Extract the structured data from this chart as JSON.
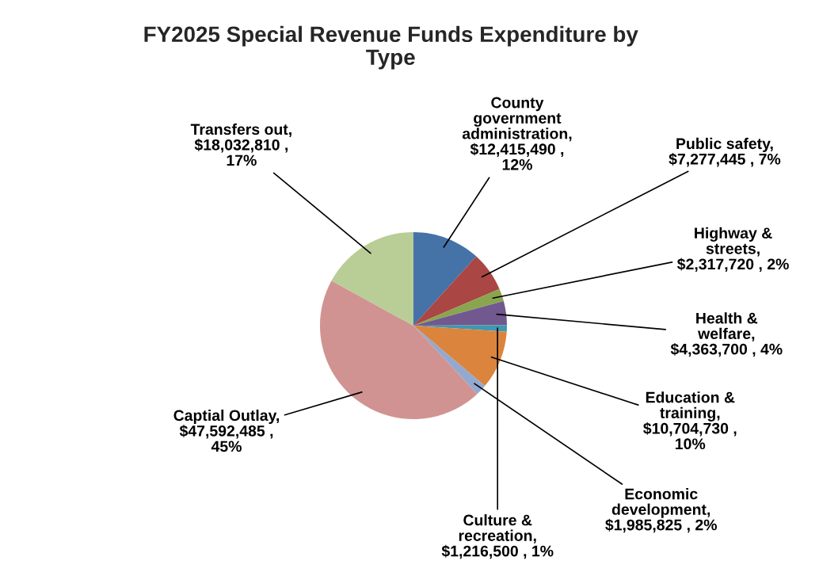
{
  "chart_data": {
    "type": "pie",
    "title": "FY2025 Special Revenue Funds Expenditure by\nType",
    "categories": [
      "County\ngovernment\nadministration",
      "Public safety",
      "Highway &\nstreets",
      "Health &\nwelfare",
      "Culture &\nrecreation",
      "Education &\ntraining",
      "Economic\ndevelopment",
      "Captial Outlay",
      "Transfers out"
    ],
    "values": [
      12415490,
      7277445,
      2317720,
      4363700,
      1216500,
      10704730,
      1985825,
      47592485,
      18032810
    ],
    "value_labels": [
      ",\n$12,415,490 ,\n12%",
      ",\n$7,277,445 , 7%",
      ",\n$2,317,720 , 2%",
      ",\n$4,363,700 , 4%",
      ",\n$1,216,500 , 1%",
      ",\n$10,704,730 ,\n10%",
      ",\n$1,985,825 , 2%",
      ",\n$47,592,485 ,\n45%",
      ",\n$18,032,810 ,\n17%"
    ],
    "colors": [
      "#4572a7",
      "#aa4643",
      "#89a54e",
      "#71588f",
      "#4198af",
      "#db843d",
      "#93a9cf",
      "#d19392",
      "#b9cd96"
    ]
  }
}
